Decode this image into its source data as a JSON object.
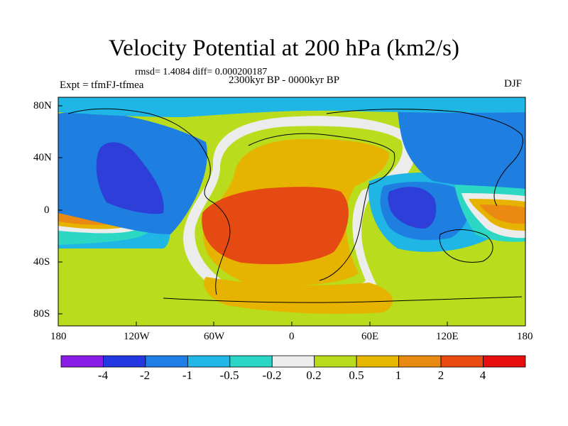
{
  "title": "Velocity Potential at 200 hPa (km2/s)",
  "stats": "rmsd= 1.4084  diff= 0.000200187",
  "period": "2300kyr BP - 0000kyr BP",
  "experiment": "Expt = tfmFJ-tfmea",
  "season": "DJF",
  "axes": {
    "lat_ticks": [
      "80N",
      "40N",
      "0",
      "40S",
      "80S"
    ],
    "lon_ticks": [
      "180",
      "120W",
      "60W",
      "0",
      "60E",
      "120E",
      "180"
    ]
  },
  "colorbar": {
    "labels": [
      "-4",
      "-2",
      "-1",
      "-0.5",
      "-0.2",
      "0.2",
      "0.5",
      "1",
      "2",
      "4"
    ],
    "colors": [
      "#8a1ee6",
      "#2338e0",
      "#1e7fe6",
      "#22b6e6",
      "#2ad6c6",
      "#ececec",
      "#b8dc1c",
      "#e6b800",
      "#e88a10",
      "#e84a10",
      "#e60e0e"
    ]
  },
  "field_colors": {
    "strong_neg": "#2d3fd8",
    "neg": "#1e7fe0",
    "weak_neg": "#1fb6e6",
    "slight_neg": "#2cd8c4",
    "near_zero": "#ececec",
    "slight_pos": "#b9dc1c",
    "weak_pos": "#e6b400",
    "pos": "#ea8a12",
    "strong_pos": "#e44a12"
  }
}
